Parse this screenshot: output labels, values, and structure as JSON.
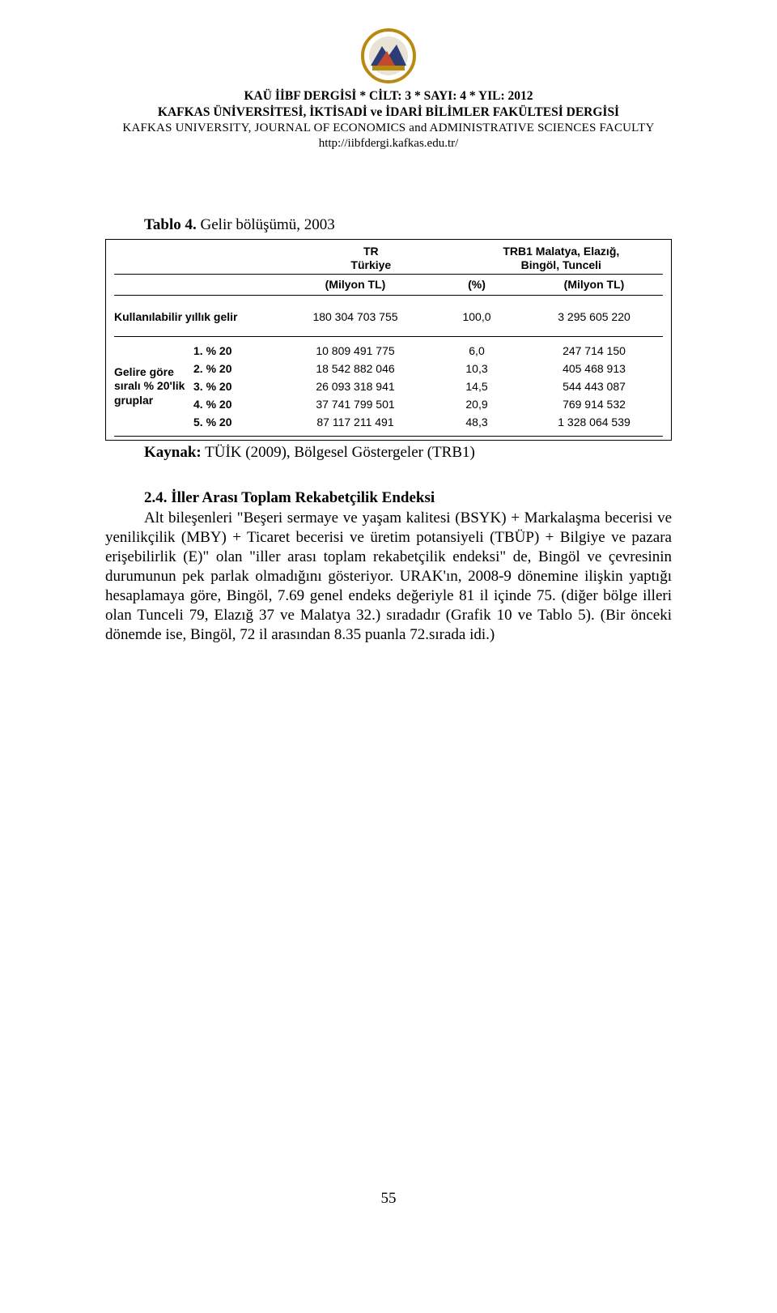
{
  "header": {
    "line1": "KAÜ İİBF DERGİSİ * CİLT: 3 * SAYI: 4 * YIL: 2012",
    "line2": "KAFKAS ÜNİVERSİTESİ, İKTİSADİ ve İDARİ BİLİMLER FAKÜLTESİ DERGİSİ",
    "line3": "KAFKAS UNIVERSITY, JOURNAL OF ECONOMICS and ADMINISTRATIVE SCIENCES FACULTY",
    "line4": "http://iibfdergi.kafkas.edu.tr/"
  },
  "logo": {
    "ring_color": "#b88a12",
    "inner_color": "#2b3d74",
    "accent_color": "#c24a2e"
  },
  "caption": {
    "bold": "Tablo 4.",
    "rest": " Gelir bölüşümü, 2003"
  },
  "table": {
    "col_group_left_l1": "TR",
    "col_group_left_l2": "Türkiye",
    "col_group_right_l1": "TRB1 Malatya, Elazığ,",
    "col_group_right_l2": "Bingöl, Tunceli",
    "subhead_a": "(Milyon TL)",
    "subhead_b": "(%)",
    "subhead_c": "(Milyon TL)",
    "main_row": {
      "label": "Kullanılabilir yıllık gelir",
      "a": "180 304 703 755",
      "b": "100,0",
      "c": "3 295 605 220"
    },
    "quintile_caption": "Gelire göre sıralı % 20'lik gruplar",
    "quintiles": [
      {
        "label": "1. % 20",
        "a": "10 809 491 775",
        "b": "6,0",
        "c": "247 714 150"
      },
      {
        "label": "2. % 20",
        "a": "18 542 882 046",
        "b": "10,3",
        "c": "405 468 913"
      },
      {
        "label": "3. % 20",
        "a": "26 093 318 941",
        "b": "14,5",
        "c": "544 443 087"
      },
      {
        "label": "4. % 20",
        "a": "37 741 799 501",
        "b": "20,9",
        "c": "769 914 532"
      },
      {
        "label": "5. % 20",
        "a": "87 117 211 491",
        "b": "48,3",
        "c": "1 328 064 539"
      }
    ]
  },
  "source": {
    "bold": "Kaynak:",
    "rest": " TÜİK (2009), Bölgesel Göstergeler (TRB1)"
  },
  "section": {
    "number": "2.4. İller Arası Toplam Rekabetçilik Endeksi",
    "body": "Alt bileşenleri \"Beşeri sermaye ve yaşam kalitesi (BSYK) + Markalaşma becerisi ve yenilikçilik (MBY) + Ticaret becerisi ve üretim potansiyeli (TBÜP) + Bilgiye ve pazara erişebilirlik (E)\" olan \"iller arası toplam rekabetçilik endeksi\" de, Bingöl ve çevresinin durumunun pek parlak olmadığını gösteriyor. URAK'ın, 2008-9 dönemine ilişkin yaptığı hesaplamaya göre, Bingöl, 7.69 genel endeks değeriyle 81 il içinde 75. (diğer bölge illeri olan Tunceli 79, Elazığ 37 ve Malatya 32.) sıradadır (Grafik 10 ve Tablo 5). (Bir önceki dönemde ise, Bingöl, 72 il arasından 8.35 puanla 72.sırada idi.)"
  },
  "page_number": "55"
}
